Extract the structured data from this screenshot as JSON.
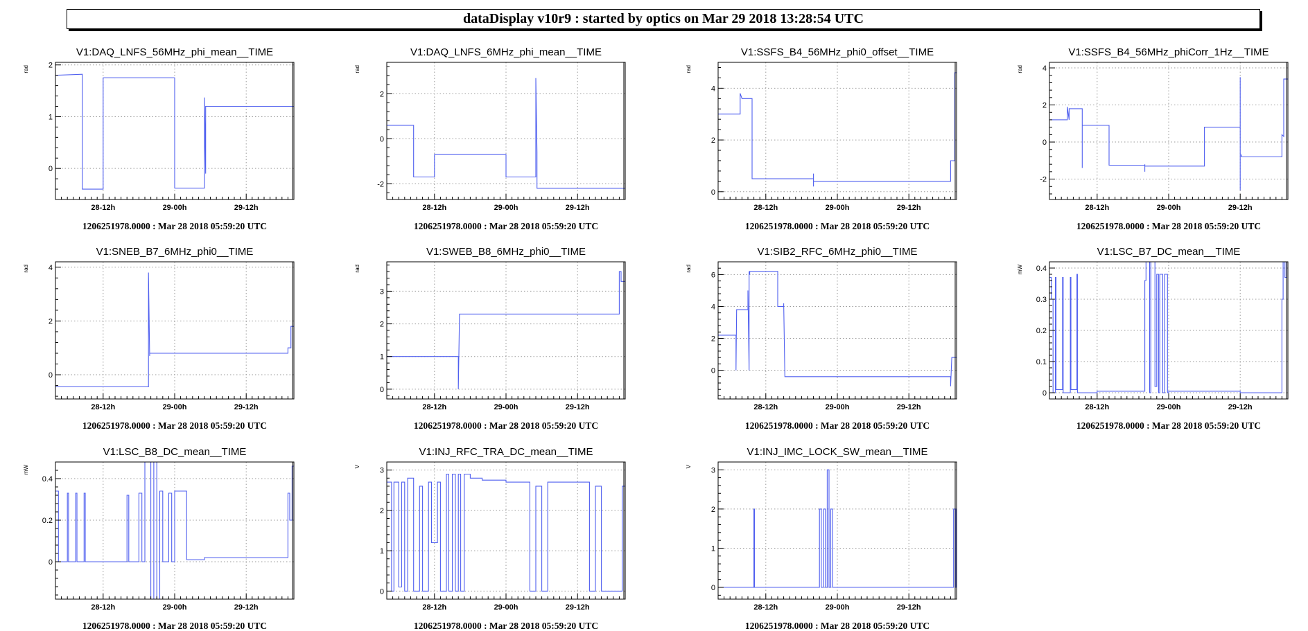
{
  "banner": "dataDisplay v10r9 : started by optics on Mar 29 2018 13:28:54 UTC",
  "colors": {
    "trace": "#4f5fef",
    "frame": "#000000",
    "grid": "#9a9a9a"
  },
  "chart_data": [
    {
      "type": "line",
      "title": "V1:DAQ_LNFS_56MHz_phi_mean__TIME",
      "ylabel": "rad",
      "xlim": [
        0,
        40
      ],
      "ylim": [
        -0.6,
        2.05
      ],
      "yticks": [
        0,
        1,
        2
      ],
      "xticks": [
        {
          "v": 8,
          "label": "28-12h"
        },
        {
          "v": 20,
          "label": "29-00h"
        },
        {
          "v": 32,
          "label": "29-12h"
        }
      ],
      "grid": true,
      "stamp": "1206251978.0000 : Mar 28 2018 05:59:20 UTC",
      "series": [
        {
          "x": [
            0,
            4.5,
            4.5,
            8,
            8,
            20,
            20,
            25,
            25,
            25.2,
            25.2,
            40
          ],
          "y": [
            1.8,
            1.82,
            -0.4,
            -0.4,
            1.75,
            1.75,
            -0.38,
            -0.38,
            1.37,
            -0.1,
            1.2,
            1.2
          ]
        }
      ]
    },
    {
      "type": "line",
      "title": "V1:DAQ_LNFS_6MHz_phi_mean__TIME",
      "ylabel": "rad",
      "xlim": [
        0,
        40
      ],
      "ylim": [
        -2.7,
        3.4
      ],
      "yticks": [
        -2,
        0,
        2
      ],
      "xticks": [
        {
          "v": 8,
          "label": "28-12h"
        },
        {
          "v": 20,
          "label": "29-00h"
        },
        {
          "v": 32,
          "label": "29-12h"
        }
      ],
      "grid": true,
      "stamp": "1206251978.0000 : Mar 28 2018 05:59:20 UTC",
      "series": [
        {
          "x": [
            0,
            4.5,
            4.5,
            8,
            8,
            20,
            20,
            25,
            25,
            25.2,
            25.2,
            40
          ],
          "y": [
            0.6,
            0.6,
            -1.7,
            -1.7,
            -0.7,
            -0.7,
            -1.7,
            -1.7,
            2.7,
            -0.6,
            -2.2,
            -2.2
          ]
        }
      ]
    },
    {
      "type": "line",
      "title": "V1:SSFS_B4_56MHz_phi0_offset__TIME",
      "ylabel": "rad",
      "xlim": [
        0,
        40
      ],
      "ylim": [
        -0.3,
        5
      ],
      "yticks": [
        0,
        2,
        4
      ],
      "xticks": [
        {
          "v": 8,
          "label": "28-12h"
        },
        {
          "v": 20,
          "label": "29-00h"
        },
        {
          "v": 32,
          "label": "29-12h"
        }
      ],
      "grid": true,
      "stamp": "1206251978.0000 : Mar 28 2018 05:59:20 UTC",
      "series": [
        {
          "x": [
            0,
            3.7,
            3.7,
            4,
            4,
            5.7,
            5.7,
            16,
            16,
            16,
            16,
            39,
            39,
            39.7,
            39.7,
            40
          ],
          "y": [
            3,
            3,
            3.8,
            3.6,
            3.6,
            3.6,
            0.5,
            0.5,
            0.2,
            0.7,
            0.4,
            0.4,
            1.2,
            1.2,
            4.6,
            4.6
          ]
        }
      ]
    },
    {
      "type": "line",
      "title": "V1:SSFS_B4_56MHz_phiCorr_1Hz__TIME",
      "ylabel": "rad",
      "xlim": [
        0,
        40
      ],
      "ylim": [
        -3.1,
        4.3
      ],
      "yticks": [
        -2,
        0,
        2,
        4
      ],
      "xticks": [
        {
          "v": 8,
          "label": "28-12h"
        },
        {
          "v": 20,
          "label": "29-00h"
        },
        {
          "v": 32,
          "label": "29-12h"
        }
      ],
      "grid": true,
      "stamp": "1206251978.0000 : Mar 28 2018 05:59:20 UTC",
      "series": [
        {
          "x": [
            0,
            3,
            3,
            3.3,
            3.3,
            5.5,
            5.5,
            5.5,
            5.5,
            10,
            10,
            16,
            16,
            16,
            16,
            26,
            26,
            32,
            32,
            32,
            32,
            32.2,
            32.2,
            39,
            39,
            39.3,
            39.3,
            40
          ],
          "y": [
            1.2,
            1.2,
            1.9,
            1.2,
            1.8,
            1.8,
            -1.4,
            0.9,
            0.9,
            0.9,
            -1.25,
            -1.25,
            -1.6,
            -1.2,
            -1.3,
            -1.3,
            0.8,
            0.8,
            3.5,
            -2.6,
            -0.7,
            -0.7,
            -0.8,
            -0.8,
            0.4,
            0.3,
            3.4,
            3.4
          ]
        }
      ]
    },
    {
      "type": "line",
      "title": "V1:SNEB_B7_6MHz_phi0__TIME",
      "ylabel": "rad",
      "xlim": [
        0,
        40
      ],
      "ylim": [
        -0.9,
        4.2
      ],
      "yticks": [
        0,
        2,
        4
      ],
      "xticks": [
        {
          "v": 8,
          "label": "28-12h"
        },
        {
          "v": 20,
          "label": "29-00h"
        },
        {
          "v": 32,
          "label": "29-12h"
        }
      ],
      "grid": true,
      "stamp": "1206251978.0000 : Mar 28 2018 05:59:20 UTC",
      "series": [
        {
          "x": [
            0,
            15.6,
            15.6,
            15.8,
            15.8,
            39,
            39,
            39.5,
            39.5,
            40
          ],
          "y": [
            -0.45,
            -0.45,
            3.8,
            0.7,
            0.8,
            0.8,
            1,
            1,
            1.8,
            1.8
          ]
        }
      ]
    },
    {
      "type": "line",
      "title": "V1:SWEB_B8_6MHz_phi0__TIME",
      "ylabel": "rad",
      "xlim": [
        0,
        40
      ],
      "ylim": [
        -0.3,
        3.9
      ],
      "yticks": [
        0,
        1,
        2,
        3
      ],
      "xticks": [
        {
          "v": 8,
          "label": "28-12h"
        },
        {
          "v": 20,
          "label": "29-00h"
        },
        {
          "v": 32,
          "label": "29-12h"
        }
      ],
      "grid": true,
      "stamp": "1206251978.0000 : Mar 28 2018 05:59:20 UTC",
      "series": [
        {
          "x": [
            0,
            12,
            12,
            12.2,
            12.2,
            39,
            39,
            39.3,
            39.3,
            40
          ],
          "y": [
            1,
            1,
            0,
            2.3,
            2.3,
            2.3,
            3.6,
            3.6,
            3.3,
            3.3
          ]
        }
      ]
    },
    {
      "type": "line",
      "title": "V1:SIB2_RFC_6MHz_phi0__TIME",
      "ylabel": "rad",
      "xlim": [
        0,
        40
      ],
      "ylim": [
        -1.8,
        6.8
      ],
      "yticks": [
        0,
        2,
        4,
        6
      ],
      "xticks": [
        {
          "v": 8,
          "label": "28-12h"
        },
        {
          "v": 20,
          "label": "29-00h"
        },
        {
          "v": 32,
          "label": "29-12h"
        }
      ],
      "grid": true,
      "stamp": "1206251978.0000 : Mar 28 2018 05:59:20 UTC",
      "series": [
        {
          "x": [
            0,
            3,
            3,
            3.1,
            3.1,
            5,
            5,
            5.2,
            5.2,
            5.3,
            5.3,
            5.5,
            5.5,
            10,
            10,
            11,
            11,
            11.2,
            11.2,
            39,
            39,
            39.2,
            39.2,
            40
          ],
          "y": [
            2.2,
            2.2,
            0,
            3.8,
            3.8,
            3.8,
            5,
            0,
            6.2,
            6,
            6.2,
            6.2,
            6.2,
            6.2,
            4,
            4,
            4.2,
            -0.4,
            -0.4,
            -0.4,
            -1,
            0.8,
            0.8,
            0.8
          ]
        }
      ]
    },
    {
      "type": "line",
      "title": "V1:LSC_B7_DC_mean__TIME",
      "ylabel": "mW",
      "xlim": [
        0,
        40
      ],
      "ylim": [
        -0.02,
        0.42
      ],
      "yticks": [
        0,
        0.1,
        0.2,
        0.3,
        0.4
      ],
      "xticks": [
        {
          "v": 8,
          "label": "28-12h"
        },
        {
          "v": 20,
          "label": "29-00h"
        },
        {
          "v": 32,
          "label": "29-12h"
        }
      ],
      "grid": true,
      "stamp": "1206251978.0000 : Mar 28 2018 05:59:20 UTC",
      "series": [
        {
          "x": [
            0,
            0.3,
            0.3,
            0.6,
            0.6,
            1,
            1,
            1.1,
            1.1,
            2.2,
            2.2,
            2.3,
            2.3,
            3.5,
            3.5,
            3.6,
            3.6,
            4.6,
            4.6,
            4.7,
            4.7,
            8,
            8,
            16,
            16,
            16.2,
            16.2,
            16.8,
            16.8,
            17,
            17,
            17.7,
            17.7,
            18,
            18,
            18.3,
            18.3,
            18.5,
            18.5,
            19,
            19,
            19.3,
            19.3,
            19.8,
            19.8,
            20,
            20,
            32,
            32,
            39,
            39,
            39.2,
            39.2,
            39.5,
            39.5,
            39.8,
            39.8,
            40
          ],
          "y": [
            0.37,
            0.37,
            0.3,
            0.3,
            0,
            0,
            0.37,
            0.37,
            0.01,
            0.01,
            0.37,
            0.37,
            0,
            0,
            0.37,
            0.37,
            0.01,
            0.01,
            0.38,
            0.38,
            0,
            0,
            0.005,
            0.005,
            0.36,
            0.36,
            0.42,
            0.42,
            0,
            0,
            0.42,
            0.42,
            0.02,
            0.02,
            0.38,
            0.38,
            0,
            0,
            0.38,
            0.38,
            0,
            0,
            0.38,
            0.38,
            0,
            0,
            0.005,
            0.005,
            0,
            0,
            0.3,
            0.3,
            0.42,
            0.42,
            0.37,
            0.37,
            0.42,
            0.42
          ]
        }
      ]
    },
    {
      "type": "line",
      "title": "V1:LSC_B8_DC_mean__TIME",
      "ylabel": "mW",
      "xlim": [
        0,
        40
      ],
      "ylim": [
        -0.18,
        0.48
      ],
      "yticks": [
        0,
        0.2,
        0.4
      ],
      "xticks": [
        {
          "v": 8,
          "label": "28-12h"
        },
        {
          "v": 20,
          "label": "29-00h"
        },
        {
          "v": 32,
          "label": "29-12h"
        }
      ],
      "grid": true,
      "stamp": "1206251978.0000 : Mar 28 2018 05:59:20 UTC",
      "series": [
        {
          "x": [
            0,
            0.5,
            0.5,
            2,
            2,
            2.2,
            2.2,
            3.4,
            3.4,
            3.6,
            3.6,
            4.8,
            4.8,
            5,
            5,
            8,
            8,
            12,
            12,
            12.3,
            12.3,
            14,
            14,
            14.5,
            14.5,
            15,
            15,
            16,
            16,
            16.5,
            16.5,
            17,
            17,
            17.5,
            17.5,
            18,
            18,
            19,
            19,
            19.5,
            19.5,
            20,
            20,
            22,
            22,
            25,
            25,
            39,
            39,
            39.3,
            39.3,
            39.7,
            39.7,
            40
          ],
          "y": [
            0.34,
            0.34,
            0,
            0,
            0.33,
            0.33,
            0,
            0,
            0.33,
            0.33,
            0,
            0,
            0.33,
            0.33,
            0,
            0,
            0,
            0,
            0.32,
            0.32,
            0,
            0,
            0.33,
            0.33,
            0,
            0,
            0.48,
            0.48,
            -0.18,
            -0.18,
            0.48,
            0.48,
            -0.18,
            -0.18,
            0.34,
            0.34,
            0,
            0,
            0.33,
            0.33,
            0,
            0,
            0.34,
            0.34,
            0.01,
            0.01,
            0.02,
            0.02,
            0.33,
            0.33,
            0.2,
            0.2,
            0.46,
            0.46
          ]
        }
      ]
    },
    {
      "type": "line",
      "title": "V1:INJ_RFC_TRA_DC_mean__TIME",
      "ylabel": "V",
      "xlim": [
        0,
        40
      ],
      "ylim": [
        -0.2,
        3.2
      ],
      "yticks": [
        0,
        1,
        2,
        3
      ],
      "xticks": [
        {
          "v": 8,
          "label": "28-12h"
        },
        {
          "v": 20,
          "label": "29-00h"
        },
        {
          "v": 32,
          "label": "29-12h"
        }
      ],
      "grid": true,
      "stamp": "1206251978.0000 : Mar 28 2018 05:59:20 UTC",
      "series": [
        {
          "x": [
            0,
            0.8,
            0.8,
            1.2,
            1.2,
            2,
            2,
            2.5,
            2.5,
            3,
            3,
            3.5,
            3.5,
            4.5,
            4.5,
            5.5,
            5.5,
            6,
            6,
            7,
            7,
            7.5,
            7.5,
            8.5,
            8.5,
            9,
            9,
            10,
            10,
            10.4,
            10.4,
            11,
            11,
            11.5,
            11.5,
            12,
            12,
            12.4,
            12.4,
            13,
            13,
            14,
            14,
            16,
            16,
            20,
            20,
            24,
            24,
            25,
            25,
            26,
            26,
            27,
            27,
            34,
            34,
            35,
            35,
            36,
            36,
            39.5,
            39.5,
            40
          ],
          "y": [
            2.7,
            2.7,
            0,
            0,
            2.7,
            2.7,
            0.1,
            0.1,
            2.7,
            2.7,
            0,
            0,
            2.8,
            2.8,
            0,
            0,
            2.6,
            2.6,
            0,
            0,
            2.7,
            2.7,
            1.2,
            1.2,
            2.7,
            2.7,
            0,
            0,
            2.9,
            2.9,
            0,
            0,
            2.9,
            2.9,
            0,
            0,
            2.9,
            2.9,
            0,
            0,
            2.9,
            2.9,
            2.8,
            2.8,
            2.75,
            2.75,
            2.7,
            2.7,
            0,
            0,
            2.6,
            2.6,
            0,
            0,
            2.7,
            2.7,
            0,
            0,
            2.6,
            2.6,
            0,
            0,
            2.6,
            2.6
          ]
        }
      ]
    },
    {
      "type": "line",
      "title": "V1:INJ_IMC_LOCK_SW_mean__TIME",
      "ylabel": "V",
      "xlim": [
        0,
        40
      ],
      "ylim": [
        -0.3,
        3.2
      ],
      "yticks": [
        0,
        1,
        2,
        3
      ],
      "xticks": [
        {
          "v": 8,
          "label": "28-12h"
        },
        {
          "v": 20,
          "label": "29-00h"
        },
        {
          "v": 32,
          "label": "29-12h"
        }
      ],
      "grid": true,
      "stamp": "1206251978.0000 : Mar 28 2018 05:59:20 UTC",
      "series": [
        {
          "x": [
            0,
            6,
            6,
            6.1,
            6.1,
            17,
            17,
            17.3,
            17.3,
            17.7,
            17.7,
            18,
            18,
            18.3,
            18.3,
            18.6,
            18.6,
            18.9,
            18.9,
            19.2,
            19.2,
            39.5,
            39.5,
            39.9,
            39.9,
            40
          ],
          "y": [
            0,
            0,
            2,
            2,
            0,
            0,
            2,
            2,
            0,
            0,
            2,
            2,
            0,
            0,
            3,
            3,
            0,
            0,
            2,
            2,
            0,
            0,
            2,
            2,
            0,
            0
          ]
        }
      ]
    }
  ]
}
